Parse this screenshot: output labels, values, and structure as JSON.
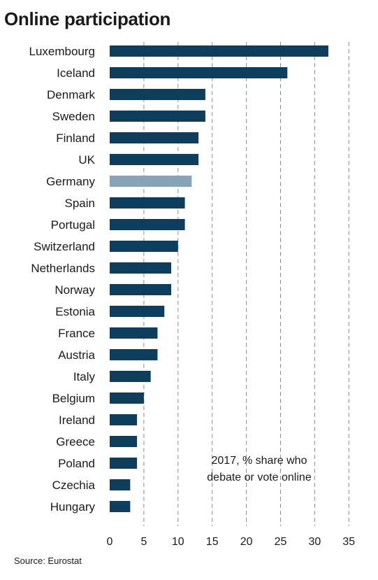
{
  "title": "Online participation",
  "source": "Source: Eurostat",
  "chart_data": {
    "type": "bar",
    "orientation": "horizontal",
    "categories": [
      "Luxembourg",
      "Iceland",
      "Denmark",
      "Sweden",
      "Finland",
      "UK",
      "Germany",
      "Spain",
      "Portugal",
      "Switzerland",
      "Netherlands",
      "Norway",
      "Estonia",
      "France",
      "Austria",
      "Italy",
      "Belgium",
      "Ireland",
      "Greece",
      "Poland",
      "Czechia",
      "Hungary"
    ],
    "values": [
      32,
      26,
      14,
      14,
      13,
      13,
      12,
      11,
      11,
      10,
      9,
      9,
      8,
      7,
      7,
      6,
      5,
      4,
      4,
      4,
      3,
      3
    ],
    "highlight": "Germany",
    "bar_color": "#0d3e5e",
    "highlight_color": "#86a3b8",
    "xlim": [
      0,
      35
    ],
    "xticks": [
      0,
      5,
      10,
      15,
      20,
      25,
      30,
      35
    ],
    "grid": "vertical dashed",
    "annotation": [
      "2017, % share who",
      "debate or vote online"
    ]
  }
}
